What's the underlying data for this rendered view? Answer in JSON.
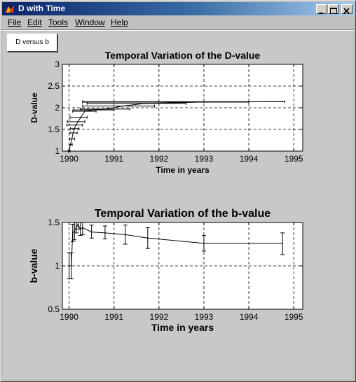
{
  "window": {
    "title": "D with Time",
    "controls": {
      "minimize": "minimize-icon",
      "maximize": "maximize-icon",
      "close": "close-icon"
    }
  },
  "menu": [
    "File",
    "Edit",
    "Tools",
    "Window",
    "Help"
  ],
  "toolbar": {
    "d_versus_b_label": "D versus b"
  },
  "chart_data": [
    {
      "type": "line",
      "title": "Temporal Variation of the D-value",
      "xlabel": "Time in years",
      "ylabel": "D-value",
      "xlim": [
        1989.85,
        1995.2
      ],
      "ylim": [
        1,
        3
      ],
      "xticks": [
        1990,
        1991,
        1992,
        1993,
        1994,
        1995
      ],
      "yticks": [
        1,
        1.5,
        2,
        2.5,
        3
      ],
      "ytick_labels": [
        "1",
        "1.5",
        "2",
        "2.5",
        "3"
      ],
      "grid": true,
      "grid_style": "dashed",
      "line_color": "#000000",
      "x": [
        1990.0,
        1990.03,
        1990.06,
        1990.09,
        1990.12,
        1990.15,
        1990.2,
        1990.26,
        1990.35,
        1990.55,
        1990.8,
        1991.2,
        1991.7,
        1993.0,
        1994.75
      ],
      "y": [
        1.0,
        1.15,
        1.28,
        1.42,
        1.52,
        1.6,
        1.68,
        1.78,
        1.92,
        1.95,
        1.97,
        2.04,
        2.1,
        2.13,
        2.14
      ],
      "error_x": [
        [
          1989.98,
          1990.02
        ],
        [
          1990.0,
          1990.07
        ],
        [
          1990.01,
          1990.12
        ],
        [
          1990.02,
          1990.18
        ],
        [
          1990.03,
          1990.22
        ],
        [
          1989.95,
          1990.3
        ],
        [
          1989.96,
          1990.35
        ],
        [
          1990.02,
          1990.4
        ],
        [
          1990.08,
          1990.6
        ],
        [
          1990.1,
          1991.0
        ],
        [
          1990.25,
          1991.35
        ],
        [
          1990.3,
          1991.9
        ],
        [
          1990.4,
          1992.6
        ],
        [
          1990.3,
          1994.0
        ],
        [
          1990.3,
          1994.8
        ]
      ]
    },
    {
      "type": "line",
      "title": "Temporal Variation of the b-value",
      "xlabel": "Time in years",
      "ylabel": "b-value",
      "xlim": [
        1989.85,
        1995.2
      ],
      "ylim": [
        0.5,
        1.5
      ],
      "xticks": [
        1990,
        1991,
        1992,
        1993,
        1994,
        1995
      ],
      "yticks": [
        0.5,
        1,
        1.5
      ],
      "ytick_labels": [
        "0.5",
        "1",
        "1.5"
      ],
      "grid": true,
      "grid_style": "dashed",
      "line_color": "#000000",
      "x": [
        1990.0,
        1990.05,
        1990.08,
        1990.12,
        1990.16,
        1990.2,
        1990.25,
        1990.3,
        1990.5,
        1990.8,
        1991.25,
        1991.75,
        1993.0,
        1994.75
      ],
      "y": [
        1.0,
        1.0,
        1.38,
        1.4,
        1.45,
        1.48,
        1.42,
        1.44,
        1.39,
        1.38,
        1.36,
        1.32,
        1.26,
        1.26
      ],
      "error_y": [
        [
          0.85,
          1.15
        ],
        [
          0.85,
          1.15
        ],
        [
          1.28,
          1.48
        ],
        [
          1.3,
          1.5
        ],
        [
          1.38,
          1.5
        ],
        [
          1.42,
          1.5
        ],
        [
          1.35,
          1.5
        ],
        [
          1.36,
          1.5
        ],
        [
          1.32,
          1.47
        ],
        [
          1.31,
          1.46
        ],
        [
          1.25,
          1.47
        ],
        [
          1.2,
          1.44
        ],
        [
          1.17,
          1.35
        ],
        [
          1.13,
          1.38
        ]
      ]
    }
  ]
}
